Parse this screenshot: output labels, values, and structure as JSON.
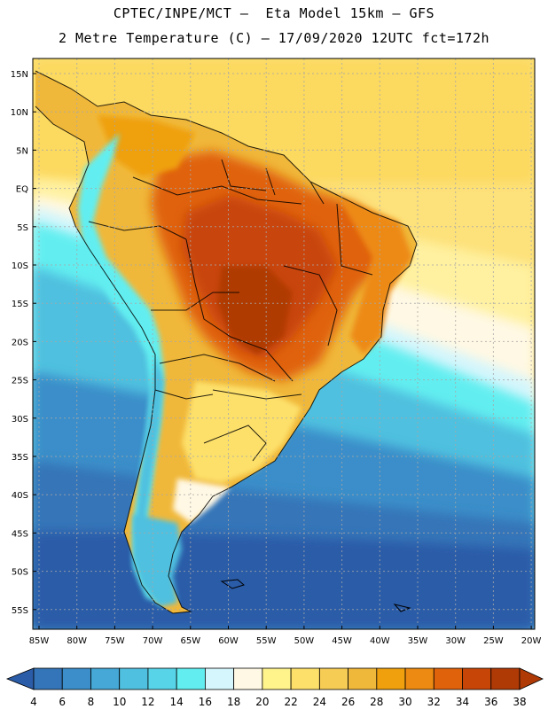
{
  "header": {
    "line1": "CPTEC/INPE/MCT –  Eta Model 15km – GFS",
    "line2": "2 Metre Temperature (C) – 17/09/2020 12UTC fct=172h"
  },
  "map": {
    "lat_labels": [
      "15N",
      "10N",
      "5N",
      "EQ",
      "5S",
      "10S",
      "15S",
      "20S",
      "25S",
      "30S",
      "35S",
      "40S",
      "45S",
      "50S",
      "55S"
    ],
    "lon_labels": [
      "85W",
      "80W",
      "75W",
      "70W",
      "65W",
      "60W",
      "55W",
      "50W",
      "45W",
      "40W",
      "35W",
      "30W",
      "25W",
      "20W"
    ]
  },
  "colorbar": {
    "labels": [
      "4",
      "6",
      "8",
      "10",
      "12",
      "14",
      "16",
      "18",
      "20",
      "22",
      "24",
      "26",
      "28",
      "30",
      "32",
      "34",
      "36",
      "38"
    ],
    "colors": [
      "#2b5ca8",
      "#3474b8",
      "#3b8ec9",
      "#45a8d6",
      "#4fc0df",
      "#57d4e8",
      "#62eef0",
      "#d4f6fc",
      "#fff8e4",
      "#fff38c",
      "#fde06a",
      "#f7cc55",
      "#f0b83a",
      "#efa00c",
      "#ed8a12",
      "#e0620a",
      "#c84508",
      "#b03a06"
    ]
  }
}
